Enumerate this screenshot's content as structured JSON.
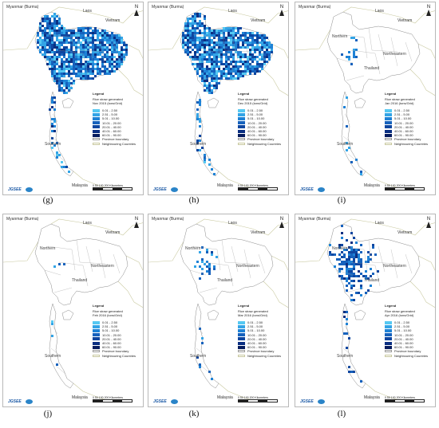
{
  "legend_colors": [
    "#55c8f2",
    "#33a4e6",
    "#1e82d6",
    "#1662bd",
    "#0e46a0",
    "#0a2f82",
    "#061c5e"
  ],
  "panels": [
    {
      "id": "g",
      "caption": "(g)",
      "labels": {
        "myanmar": "Myanmar (Burma)",
        "laos": "Laos",
        "vietnam": "Vietnam",
        "malaysia": "Malaysia",
        "southern": "Southern"
      },
      "legend_title": "Legend",
      "legend_subtitle": [
        "Rice straw generated",
        "Nov 2015 (tons/Grid)"
      ],
      "legend_items": [
        "0.01 - 2.50",
        "2.51 - 5.00",
        "5.01 - 10.00",
        "10.01 - 20.00",
        "20.01 - 40.00",
        "40.01 - 60.00",
        "60.01 - 90.00",
        "Province boundary",
        "Neighbouring Countries"
      ],
      "logo": "JGSEE",
      "scale": "0  50  100    200 Kilometers",
      "north": "N",
      "intensity": 0.85,
      "extent": "wide"
    },
    {
      "id": "h",
      "caption": "(h)",
      "labels": {
        "myanmar": "Myanmar (Burma)",
        "laos": "Laos",
        "vietnam": "Vietnam",
        "malaysia": "Malaysia",
        "southern": "Southern"
      },
      "legend_title": "Legend",
      "legend_subtitle": [
        "Rice straw generated",
        "Dec 2015 (tons/Grid)"
      ],
      "legend_items": [
        "0.01 - 2.50",
        "2.51 - 5.00",
        "5.01 - 10.00",
        "10.01 - 20.00",
        "20.01 - 40.00",
        "40.01 - 60.00",
        "60.01 - 90.00",
        "Province boundary",
        "Neighbouring Countries"
      ],
      "logo": "JGSEE",
      "scale": "0  50  100    200 Kilometers",
      "north": "N",
      "intensity": 0.8,
      "extent": "wide"
    },
    {
      "id": "i",
      "caption": "(i)",
      "labels": {
        "myanmar": "Myanmar (Burma)",
        "laos": "Laos",
        "vietnam": "Vietnam",
        "malaysia": "Malaysia",
        "southern": "Southern",
        "northern": "Northern",
        "northeastern": "Northeastern",
        "thailand": "Thailand"
      },
      "legend_title": "Legend",
      "legend_subtitle": [
        "Rice straw generated",
        "Jan 2016 (tons/Grid)"
      ],
      "legend_items": [
        "0.01 - 2.50",
        "2.51 - 5.00",
        "5.01 - 10.00",
        "10.01 - 20.00",
        "20.01 - 40.00",
        "40.01 - 60.00",
        "60.01 - 90.00",
        "Province boundary",
        "Neighbouring Countries"
      ],
      "logo": "JGSEE",
      "scale": "0  50  100    200 Kilometers",
      "north": "N",
      "intensity": 0.25,
      "extent": "central"
    },
    {
      "id": "j",
      "caption": "(j)",
      "labels": {
        "myanmar": "Myanmar (Burma)",
        "laos": "Laos",
        "vietnam": "Vietnam",
        "malaysia": "Malaysia",
        "southern": "Southern",
        "northern": "Northern",
        "northeastern": "Northeastern",
        "thailand": "Thailand"
      },
      "legend_title": "Legend",
      "legend_subtitle": [
        "Rice straw generated",
        "Feb 2016 (tons/Grid)"
      ],
      "legend_items": [
        "0.01 - 2.50",
        "2.51 - 5.00",
        "5.01 - 10.00",
        "10.01 - 20.00",
        "20.01 - 40.00",
        "40.01 - 60.00",
        "60.01 - 90.00",
        "Province boundary",
        "Neighbouring Countries"
      ],
      "logo": "JGSEE",
      "scale": "0  50  100    200 Kilometers",
      "north": "N",
      "intensity": 0.15,
      "extent": "central"
    },
    {
      "id": "k",
      "caption": "(k)",
      "labels": {
        "myanmar": "Myanmar (Burma)",
        "laos": "Laos",
        "vietnam": "Vietnam",
        "malaysia": "Malaysia",
        "southern": "Southern",
        "northern": "Northern",
        "northeastern": "Northeastern",
        "thailand": "Thailand"
      },
      "legend_title": "Legend",
      "legend_subtitle": [
        "Rice straw generated",
        "Mar 2016 (tons/Grid)"
      ],
      "legend_items": [
        "0.01 - 2.50",
        "2.51 - 5.00",
        "5.01 - 10.00",
        "10.01 - 20.00",
        "20.01 - 40.00",
        "40.01 - 60.00",
        "60.01 - 90.00",
        "Province boundary",
        "Neighbouring Countries"
      ],
      "logo": "JGSEE",
      "scale": "0  50  100    200 Kilometers",
      "north": "N",
      "intensity": 0.3,
      "extent": "central"
    },
    {
      "id": "l",
      "caption": "(l)",
      "labels": {
        "myanmar": "Myanmar (Burma)",
        "laos": "Laos",
        "vietnam": "Vietnam",
        "malaysia": "Malaysia",
        "southern": "Southern",
        "northern": "Northern",
        "northeastern": "Northeastern",
        "thailand": "Thailand"
      },
      "legend_title": "Legend",
      "legend_subtitle": [
        "Rice straw generated",
        "Apr 2016 (tons/Grid)"
      ],
      "legend_items": [
        "0.01 - 2.50",
        "2.51 - 5.00",
        "5.01 - 10.00",
        "10.01 - 20.00",
        "20.01 - 40.00",
        "40.01 - 60.00",
        "60.01 - 90.00",
        "Province boundary",
        "Neighbouring Countries"
      ],
      "logo": "JGSEE",
      "scale": "0  50  100    200 Kilometers",
      "north": "N",
      "intensity": 0.55,
      "extent": "central"
    }
  ]
}
